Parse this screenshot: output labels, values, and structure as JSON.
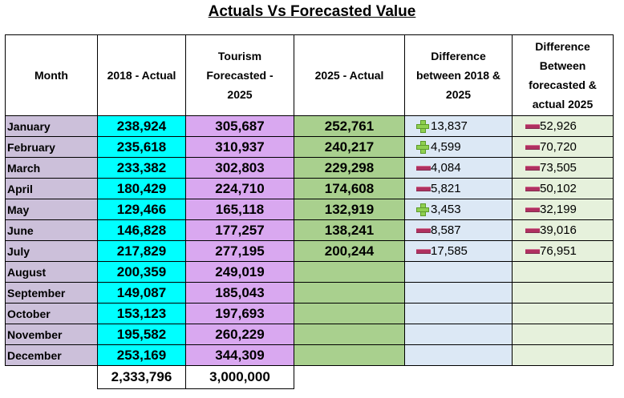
{
  "title": "Actuals Vs Forecasted Value",
  "headers": {
    "month": "Month",
    "actual_2018": "2018 - Actual",
    "forecast_2025": "Tourism Forecasted - 2025",
    "actual_2025": "2025 - Actual",
    "diff_2018_2025": "Difference between 2018 & 2025",
    "diff_forecast_actual": "Difference Between forecasted & actual 2025"
  },
  "rows": [
    {
      "month": "January",
      "a18": "238,924",
      "fc": "305,687",
      "a25": "252,761",
      "d1": "13,837",
      "d1_icon": "plus",
      "d2": "52,926",
      "d2_icon": "minus"
    },
    {
      "month": "February",
      "a18": "235,618",
      "fc": "310,937",
      "a25": "240,217",
      "d1": "4,599",
      "d1_icon": "plus",
      "d2": "70,720",
      "d2_icon": "minus"
    },
    {
      "month": "March",
      "a18": "233,382",
      "fc": "302,803",
      "a25": "229,298",
      "d1": "4,084",
      "d1_icon": "minus",
      "d2": "73,505",
      "d2_icon": "minus"
    },
    {
      "month": "April",
      "a18": "180,429",
      "fc": "224,710",
      "a25": "174,608",
      "d1": "5,821",
      "d1_icon": "minus",
      "d2": "50,102",
      "d2_icon": "minus"
    },
    {
      "month": "May",
      "a18": "129,466",
      "fc": "165,118",
      "a25": "132,919",
      "d1": "3,453",
      "d1_icon": "plus",
      "d2": "32,199",
      "d2_icon": "minus"
    },
    {
      "month": "June",
      "a18": "146,828",
      "fc": "177,257",
      "a25": "138,241",
      "d1": "8,587",
      "d1_icon": "minus",
      "d2": "39,016",
      "d2_icon": "minus"
    },
    {
      "month": "July",
      "a18": "217,829",
      "fc": "277,195",
      "a25": "200,244",
      "d1": "17,585",
      "d1_icon": "minus",
      "d2": "76,951",
      "d2_icon": "minus"
    },
    {
      "month": "August",
      "a18": "200,359",
      "fc": "249,019",
      "a25": "",
      "d1": "",
      "d1_icon": "",
      "d2": "",
      "d2_icon": ""
    },
    {
      "month": "September",
      "a18": "149,087",
      "fc": "185,043",
      "a25": "",
      "d1": "",
      "d1_icon": "",
      "d2": "",
      "d2_icon": ""
    },
    {
      "month": "October",
      "a18": "153,123",
      "fc": "197,693",
      "a25": "",
      "d1": "",
      "d1_icon": "",
      "d2": "",
      "d2_icon": ""
    },
    {
      "month": "November",
      "a18": "195,582",
      "fc": "260,229",
      "a25": "",
      "d1": "",
      "d1_icon": "",
      "d2": "",
      "d2_icon": ""
    },
    {
      "month": "December",
      "a18": "253,169",
      "fc": "344,309",
      "a25": "",
      "d1": "",
      "d1_icon": "",
      "d2": "",
      "d2_icon": ""
    }
  ],
  "totals": {
    "a18": "2,333,796",
    "fc": "3,000,000"
  },
  "colors": {
    "month_bg": "#ccc0da",
    "actual_2018_bg": "#00ffff",
    "forecast_bg": "#d9a8f0",
    "actual_2025_bg": "#a9d08e",
    "diff1_bg": "#dce8f5",
    "diff2_bg": "#e6f1dc",
    "plus_icon": "#8fd050",
    "minus_icon": "#b03060"
  }
}
